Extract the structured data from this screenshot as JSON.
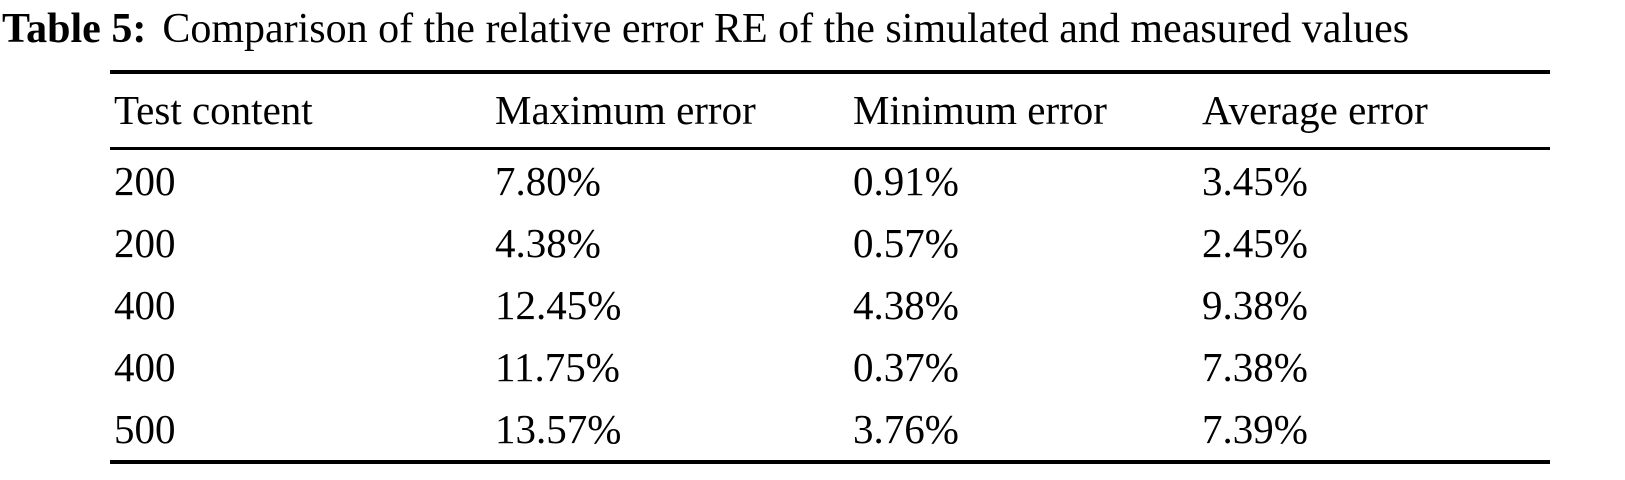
{
  "caption": {
    "label": "Table 5:",
    "text": "Comparison of the relative error RE of the simulated and measured values"
  },
  "chart_data": {
    "type": "table",
    "title": "Table 5: Comparison of the relative error RE of the simulated and measured values",
    "columns": [
      "Test content",
      "Maximum error",
      "Minimum error",
      "Average error"
    ],
    "rows": [
      [
        "200",
        "7.80%",
        "0.91%",
        "3.45%"
      ],
      [
        "200",
        "4.38%",
        "0.57%",
        "2.45%"
      ],
      [
        "400",
        "12.45%",
        "4.38%",
        "9.38%"
      ],
      [
        "400",
        "11.75%",
        "0.37%",
        "7.38%"
      ],
      [
        "500",
        "13.57%",
        "3.76%",
        "7.39%"
      ]
    ]
  },
  "colors": {
    "background": "#ffffff",
    "text": "#000000",
    "rule": "#000000"
  }
}
